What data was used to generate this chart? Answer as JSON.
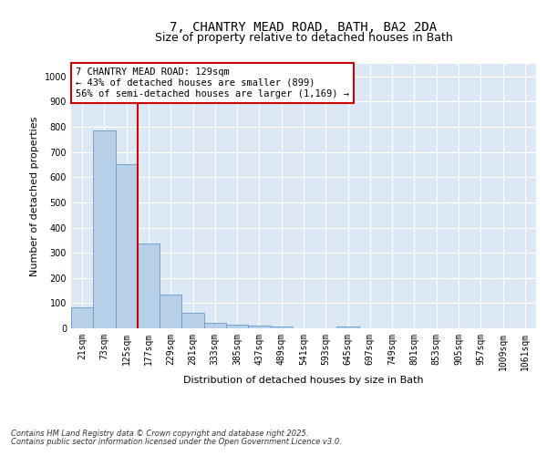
{
  "title_line1": "7, CHANTRY MEAD ROAD, BATH, BA2 2DA",
  "title_line2": "Size of property relative to detached houses in Bath",
  "xlabel": "Distribution of detached houses by size in Bath",
  "ylabel": "Number of detached properties",
  "categories": [
    "21sqm",
    "73sqm",
    "125sqm",
    "177sqm",
    "229sqm",
    "281sqm",
    "333sqm",
    "385sqm",
    "437sqm",
    "489sqm",
    "541sqm",
    "593sqm",
    "645sqm",
    "697sqm",
    "749sqm",
    "801sqm",
    "853sqm",
    "905sqm",
    "957sqm",
    "1009sqm",
    "1061sqm"
  ],
  "values": [
    85,
    785,
    650,
    335,
    135,
    60,
    22,
    15,
    12,
    7,
    0,
    0,
    8,
    0,
    0,
    0,
    0,
    0,
    0,
    0,
    0
  ],
  "bar_color": "#b8cfe8",
  "bar_edge_color": "#6699cc",
  "vline_color": "#cc0000",
  "annotation_text": "7 CHANTRY MEAD ROAD: 129sqm\n← 43% of detached houses are smaller (899)\n56% of semi-detached houses are larger (1,169) →",
  "annotation_box_color": "#cc0000",
  "ylim": [
    0,
    1050
  ],
  "yticks": [
    0,
    100,
    200,
    300,
    400,
    500,
    600,
    700,
    800,
    900,
    1000
  ],
  "background_color": "#dde8f5",
  "grid_color": "#ffffff",
  "footer_line1": "Contains HM Land Registry data © Crown copyright and database right 2025.",
  "footer_line2": "Contains public sector information licensed under the Open Government Licence v3.0.",
  "title_fontsize": 10,
  "subtitle_fontsize": 9,
  "axis_label_fontsize": 8,
  "tick_fontsize": 7,
  "annotation_fontsize": 7.5,
  "footer_fontsize": 6
}
